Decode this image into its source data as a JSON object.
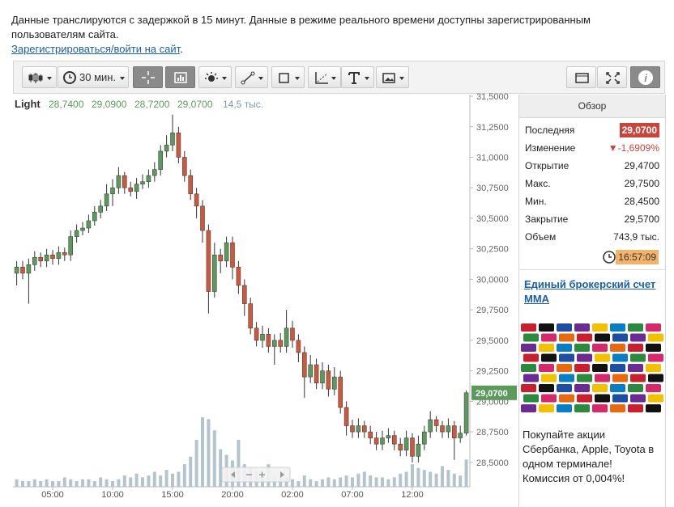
{
  "notice": {
    "text": "Данные транслируются с задержкой в 15 минут. Данные в режиме реального времени доступны зарегистрированным пользователям сайта.",
    "link": "Зарегистрироваться/войти на сайт",
    "link_end": "."
  },
  "toolbar": {
    "interval": "30 мин."
  },
  "chart_data": {
    "type": "candlestick",
    "legend": {
      "symbol": "Light",
      "open": "28,7400",
      "high": "29,0900",
      "low": "28,7200",
      "close": "29,0700",
      "volume": "14,5 тыс."
    },
    "categories": [
      null,
      null,
      null,
      null,
      null,
      null,
      "05:00",
      null,
      null,
      null,
      null,
      null,
      null,
      null,
      null,
      null,
      "10:00",
      null,
      null,
      null,
      null,
      null,
      null,
      null,
      null,
      null,
      "15:00",
      null,
      null,
      null,
      null,
      null,
      null,
      null,
      null,
      null,
      "20:00",
      null,
      null,
      null,
      null,
      null,
      null,
      null,
      null,
      null,
      "02:00",
      null,
      null,
      null,
      null,
      null,
      null,
      null,
      null,
      null,
      "07:00",
      null,
      null,
      null,
      null,
      null,
      null,
      null,
      null,
      null,
      "12:00",
      null,
      null,
      null,
      null,
      null,
      null,
      null,
      null,
      null
    ],
    "open": [
      30.05,
      30.1,
      30.05,
      30.12,
      30.18,
      30.15,
      30.2,
      30.17,
      30.22,
      30.2,
      30.35,
      30.4,
      30.42,
      30.48,
      30.55,
      30.6,
      30.7,
      30.75,
      30.85,
      30.75,
      30.72,
      30.78,
      30.8,
      30.85,
      30.9,
      31.05,
      31.1,
      31.2,
      31.0,
      30.85,
      30.7,
      30.6,
      30.4,
      29.9,
      30.2,
      30.15,
      30.3,
      30.1,
      29.95,
      29.8,
      29.6,
      29.5,
      29.55,
      29.45,
      29.5,
      29.45,
      29.6,
      29.5,
      29.4,
      29.2,
      29.3,
      29.15,
      29.25,
      29.1,
      29.2,
      28.95,
      28.8,
      28.75,
      28.8,
      28.75,
      28.7,
      28.65,
      28.7,
      28.72,
      28.65,
      28.6,
      28.7,
      28.55,
      28.65,
      28.75,
      28.85,
      28.8,
      28.75,
      28.8,
      28.7,
      28.74
    ],
    "high": [
      30.15,
      30.15,
      30.17,
      30.23,
      30.22,
      30.25,
      30.24,
      30.27,
      30.26,
      30.4,
      30.45,
      30.47,
      30.53,
      30.6,
      30.65,
      30.78,
      30.82,
      30.92,
      30.88,
      30.8,
      30.83,
      30.86,
      30.9,
      30.96,
      31.1,
      31.18,
      31.35,
      31.25,
      31.05,
      30.9,
      30.75,
      30.65,
      30.45,
      30.3,
      30.25,
      30.35,
      30.35,
      30.15,
      30.0,
      29.85,
      29.65,
      29.62,
      29.6,
      29.55,
      29.56,
      29.75,
      29.66,
      29.55,
      29.45,
      29.38,
      29.35,
      29.32,
      29.3,
      29.28,
      29.25,
      29.0,
      28.85,
      28.86,
      28.84,
      28.8,
      28.75,
      28.76,
      28.78,
      28.76,
      28.7,
      28.76,
      28.74,
      28.72,
      28.8,
      28.92,
      28.88,
      28.84,
      28.86,
      28.84,
      28.8,
      29.09
    ],
    "low": [
      29.95,
      30.0,
      29.8,
      30.07,
      30.1,
      30.1,
      30.12,
      30.12,
      30.15,
      30.15,
      30.3,
      30.36,
      30.38,
      30.44,
      30.5,
      30.56,
      30.6,
      30.7,
      30.7,
      30.68,
      30.66,
      30.74,
      30.75,
      30.8,
      30.85,
      31.0,
      31.05,
      30.95,
      30.8,
      30.65,
      30.5,
      30.3,
      29.72,
      29.85,
      30.05,
      30.1,
      30.0,
      29.88,
      29.7,
      29.55,
      29.45,
      29.44,
      29.4,
      29.3,
      29.4,
      29.4,
      29.44,
      29.32,
      29.03,
      29.15,
      29.1,
      29.1,
      29.04,
      29.05,
      28.9,
      28.72,
      28.7,
      28.7,
      28.7,
      28.65,
      28.6,
      28.6,
      28.66,
      28.6,
      28.55,
      28.55,
      28.5,
      28.5,
      28.6,
      28.7,
      28.75,
      28.7,
      28.7,
      28.52,
      28.66,
      28.72
    ],
    "close": [
      30.1,
      30.05,
      30.12,
      30.18,
      30.15,
      30.2,
      30.17,
      30.22,
      30.2,
      30.35,
      30.4,
      30.42,
      30.48,
      30.55,
      30.6,
      30.7,
      30.75,
      30.85,
      30.75,
      30.72,
      30.78,
      30.8,
      30.85,
      30.9,
      31.05,
      31.1,
      31.2,
      31.0,
      30.85,
      30.7,
      30.6,
      30.4,
      29.9,
      30.2,
      30.15,
      30.3,
      30.1,
      29.95,
      29.8,
      29.6,
      29.5,
      29.55,
      29.45,
      29.5,
      29.45,
      29.6,
      29.5,
      29.4,
      29.2,
      29.3,
      29.15,
      29.25,
      29.1,
      29.2,
      28.95,
      28.8,
      28.75,
      28.8,
      28.75,
      28.7,
      28.65,
      28.7,
      28.72,
      28.65,
      28.6,
      28.7,
      28.55,
      28.65,
      28.75,
      28.85,
      28.8,
      28.75,
      28.8,
      28.7,
      28.74,
      29.07
    ],
    "volume": [
      4,
      3,
      3,
      4,
      3,
      4,
      3,
      3,
      5,
      4,
      3,
      4,
      4,
      3,
      5,
      4,
      3,
      4,
      6,
      5,
      7,
      5,
      6,
      8,
      6,
      9,
      7,
      8,
      12,
      16,
      25,
      37,
      36,
      30,
      20,
      17,
      14,
      25,
      12,
      10,
      8,
      7,
      12,
      6,
      5,
      5,
      4,
      3,
      6,
      4,
      3,
      4,
      5,
      4,
      5,
      6,
      5,
      7,
      8,
      6,
      5,
      5,
      4,
      5,
      7,
      8,
      12,
      10,
      9,
      8,
      7,
      11,
      9,
      7,
      6,
      14.5
    ],
    "up_color": "#5b9a5b",
    "down_color": "#cf573b",
    "volume_color": "#b3c4ce",
    "last_price_label": "29,0700",
    "last_price_color": "#5b9a5b",
    "ylim": [
      28.3,
      31.54
    ],
    "yticks": [
      {
        "value": 28.5,
        "label": "28,5000"
      },
      {
        "value": 28.75,
        "label": "28,7500"
      },
      {
        "value": 29,
        "label": "29,0000"
      },
      {
        "value": 29.25,
        "label": "29,2500"
      },
      {
        "value": 29.5,
        "label": "29,5000"
      },
      {
        "value": 29.75,
        "label": "29,7500"
      },
      {
        "value": 30,
        "label": "30,0000"
      },
      {
        "value": 30.25,
        "label": "30,2500"
      },
      {
        "value": 30.5,
        "label": "30,5000"
      },
      {
        "value": 30.75,
        "label": "30,7500"
      },
      {
        "value": 31,
        "label": "31,0000"
      },
      {
        "value": 31.25,
        "label": "31,2500"
      },
      {
        "value": 31.5,
        "label": "31,5000"
      }
    ]
  },
  "overview": {
    "title": "Обзор",
    "rows": [
      [
        "Последняя",
        "29,0700"
      ],
      [
        "Изменение",
        "▼-1,6909%"
      ],
      [
        "Открытие",
        "29,4700"
      ],
      [
        "Макс.",
        "29,7500"
      ],
      [
        "Мин.",
        "28,4500"
      ],
      [
        "Закрытие",
        "29,5700"
      ],
      [
        "Объем",
        "743,9 тыс."
      ]
    ],
    "time": "16:57:09"
  },
  "ad": {
    "title": "Единый брокерский счет ММА",
    "text": "Покупайте акции Сбербанка, Apple, Toyota в одном терминале! Комиссия от 0,004%!"
  }
}
